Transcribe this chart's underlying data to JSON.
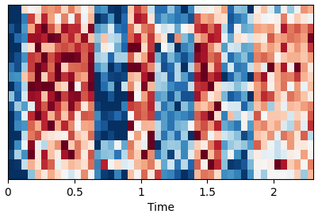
{
  "title": "",
  "xlabel": "Time",
  "ylabel": "",
  "xlim": [
    0,
    2.3
  ],
  "xticks": [
    0,
    0.5,
    1.0,
    1.5,
    2.0
  ],
  "colormap": "RdBu_r",
  "vmin": -2.0,
  "vmax": 2.0,
  "n_rows": 18,
  "n_cols": 46,
  "seed": 137,
  "figsize": [
    4.01,
    2.75
  ],
  "dpi": 100
}
